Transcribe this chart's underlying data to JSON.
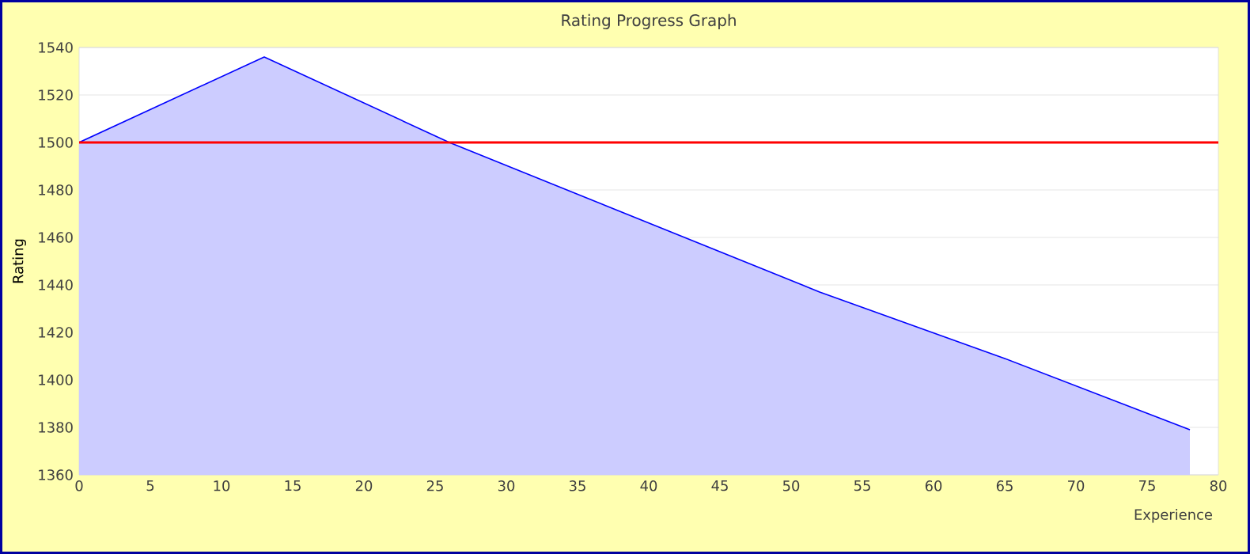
{
  "chart_data": {
    "type": "area",
    "title": "Rating Progress Graph",
    "xlabel": "Experience",
    "ylabel": "Rating",
    "x": [
      0,
      13,
      26,
      52,
      65,
      78
    ],
    "series": [
      {
        "color": "#0000ff",
        "values": [
          1500,
          1536,
          1500,
          1437,
          1409,
          1379
        ]
      }
    ],
    "xlim": [
      0,
      80
    ],
    "xticks": [
      0,
      5,
      10,
      15,
      20,
      25,
      30,
      35,
      40,
      45,
      50,
      55,
      60,
      65,
      70,
      75,
      80
    ],
    "ylim": [
      1360,
      1540
    ],
    "yticks": [
      1360,
      1380,
      1400,
      1420,
      1440,
      1460,
      1480,
      1500,
      1520,
      1540
    ],
    "grid": "y",
    "ref_lines": [
      {
        "axis": "y",
        "value": 1500,
        "color": "#ff0000"
      }
    ]
  }
}
